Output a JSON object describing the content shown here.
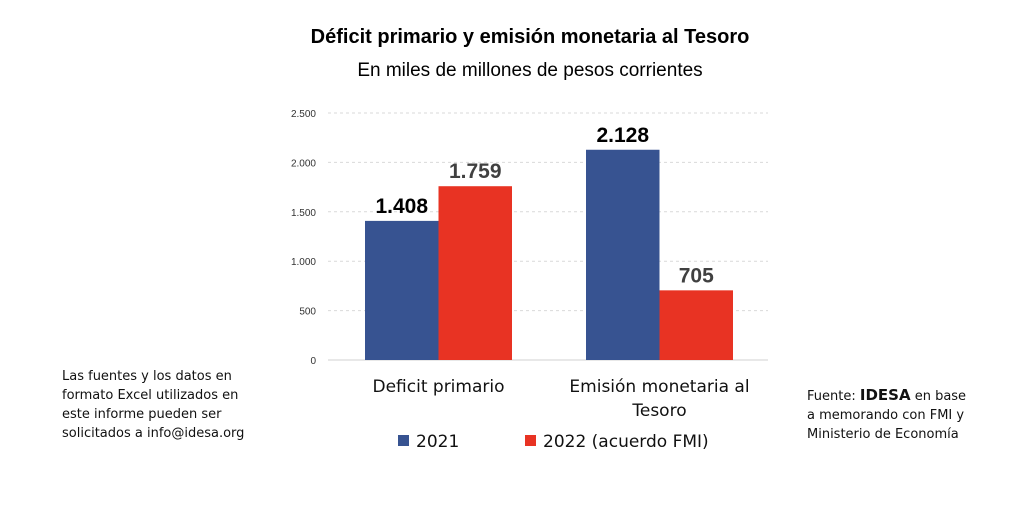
{
  "chart_data": {
    "type": "bar",
    "title": "Déficit primario y emisión monetaria al Tesoro",
    "subtitle": "En miles de millones de pesos corrientes",
    "categories": [
      "Deficit primario",
      "Emisión monetaria al Tesoro"
    ],
    "category_lines": [
      [
        "Deficit primario"
      ],
      [
        "Emisión monetaria al",
        "Tesoro"
      ]
    ],
    "series": [
      {
        "name": "2021",
        "color": "#375391",
        "values": [
          1408,
          2128
        ],
        "labels": [
          "1.408",
          "2.128"
        ]
      },
      {
        "name": "2022 (acuerdo FMI)",
        "color": "#E83323",
        "values": [
          1759,
          705
        ],
        "labels": [
          "1.759",
          "705"
        ]
      }
    ],
    "yticks": [
      0,
      500,
      1000,
      1500,
      2000,
      2500
    ],
    "ytick_labels": [
      "0",
      "500",
      "1.000",
      "1.500",
      "2.000",
      "2.500"
    ],
    "ylim": [
      0,
      2500
    ],
    "grid": true,
    "legend": "bottom",
    "xlabel": "",
    "ylabel": ""
  },
  "notes": {
    "left": [
      "Las fuentes y los datos en",
      "formato Excel utilizados en",
      "este informe pueden ser",
      "solicitados a info@idesa.org"
    ],
    "source_prefix": "Fuente: ",
    "source_brand": "IDESA",
    "source_suffix": " en base",
    "source_lines": [
      "a memorando con FMI y",
      "Ministerio de Economía"
    ]
  }
}
